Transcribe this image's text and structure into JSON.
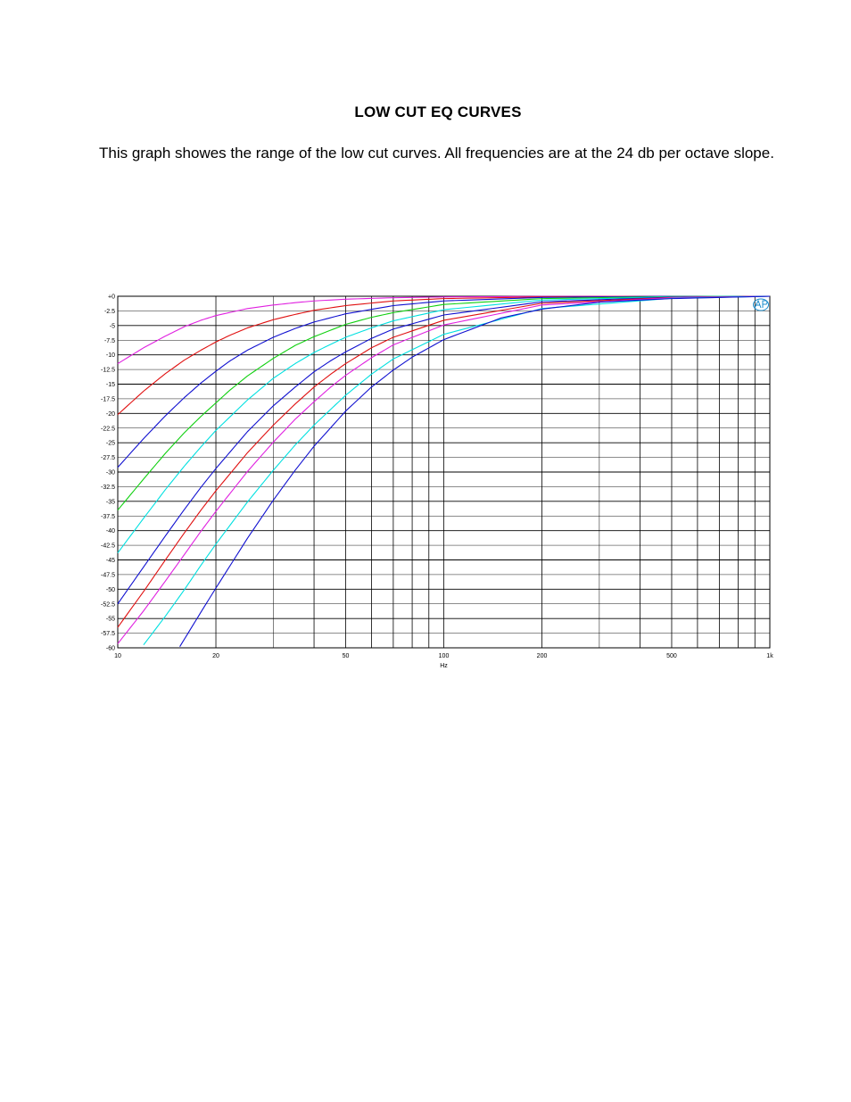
{
  "document": {
    "title": "LOW CUT EQ CURVES",
    "description": "This graph showes the range of the low cut curves.  All frequencies are at the 24 db per octave slope."
  },
  "chart_data": {
    "type": "line",
    "title": "",
    "xlabel": "Hz",
    "ylabel": "",
    "x_scale": "log",
    "xlim": [
      10,
      1000
    ],
    "ylim": [
      -60,
      0
    ],
    "grid": true,
    "legend": "none",
    "x_tick_labels": [
      {
        "value": 10,
        "label": "10"
      },
      {
        "value": 20,
        "label": "20"
      },
      {
        "value": 50,
        "label": "50"
      },
      {
        "value": 100,
        "label": "100"
      },
      {
        "value": 200,
        "label": "200"
      },
      {
        "value": 500,
        "label": "500"
      },
      {
        "value": 1000,
        "label": "1k"
      }
    ],
    "y_tick_labels": [
      "+0",
      "-2.5",
      "-5",
      "-7.5",
      "-10",
      "-12.5",
      "-15",
      "-17.5",
      "-20",
      "-22.5",
      "-25",
      "-27.5",
      "-30",
      "-32.5",
      "-35",
      "-37.5",
      "-40",
      "-42.5",
      "-45",
      "-47.5",
      "-50",
      "-52.5",
      "-55",
      "-57.5",
      "-60"
    ],
    "series": [
      {
        "color": "#e020e0",
        "x": [
          10,
          12,
          14,
          16,
          18,
          20,
          25,
          30,
          35,
          40,
          50,
          70,
          100,
          200,
          500,
          1000
        ],
        "y": [
          -11.5,
          -8.8,
          -6.8,
          -5.2,
          -4.1,
          -3.3,
          -2.1,
          -1.5,
          -1.1,
          -0.8,
          -0.5,
          -0.25,
          -0.12,
          -0.03,
          0,
          0
        ]
      },
      {
        "color": "#e01010",
        "x": [
          10,
          12,
          14,
          16,
          18,
          20,
          22,
          25,
          30,
          35,
          40,
          50,
          70,
          100,
          200,
          500,
          1000
        ],
        "y": [
          -20.2,
          -16.2,
          -13.2,
          -10.9,
          -9.2,
          -7.8,
          -6.7,
          -5.4,
          -4,
          -3.1,
          -2.4,
          -1.6,
          -0.8,
          -0.4,
          -0.1,
          0,
          0
        ]
      },
      {
        "color": "#1010d0",
        "x": [
          10,
          12,
          14,
          16,
          18,
          20,
          22,
          25,
          30,
          35,
          40,
          50,
          70,
          100,
          200,
          500,
          1000
        ],
        "y": [
          -29.2,
          -24.3,
          -20.4,
          -17.3,
          -14.8,
          -12.8,
          -11.1,
          -9.2,
          -7,
          -5.5,
          -4.4,
          -3,
          -1.6,
          -0.8,
          -0.2,
          0,
          0
        ]
      },
      {
        "color": "#10d010",
        "x": [
          10,
          12,
          14,
          16,
          18,
          20,
          22,
          25,
          30,
          35,
          40,
          50,
          60,
          70,
          100,
          200,
          500,
          1000
        ],
        "y": [
          -36.5,
          -31.2,
          -26.8,
          -23.3,
          -20.5,
          -18.2,
          -16.1,
          -13.6,
          -10.6,
          -8.4,
          -6.9,
          -4.8,
          -3.6,
          -2.8,
          -1.4,
          -0.4,
          -0.05,
          0
        ]
      },
      {
        "color": "#00e0e0",
        "x": [
          10,
          12,
          14,
          16,
          18,
          20,
          25,
          30,
          35,
          40,
          45,
          50,
          60,
          70,
          100,
          200,
          500,
          1000
        ],
        "y": [
          -43.8,
          -37.9,
          -33,
          -29,
          -25.7,
          -22.9,
          -17.7,
          -14,
          -11.5,
          -9.6,
          -8.2,
          -7,
          -5.4,
          -4.2,
          -2.3,
          -0.65,
          -0.1,
          0
        ]
      },
      {
        "color": "#1010d0",
        "x": [
          10,
          12,
          14,
          16,
          18,
          20,
          25,
          30,
          35,
          40,
          45,
          50,
          60,
          70,
          100,
          200,
          500,
          1000
        ],
        "y": [
          -52.5,
          -46.2,
          -40.9,
          -36.4,
          -32.6,
          -29.4,
          -23.1,
          -18.7,
          -15.5,
          -12.9,
          -11,
          -9.5,
          -7.2,
          -5.6,
          -3.2,
          -0.95,
          -0.15,
          0
        ]
      },
      {
        "color": "#e01010",
        "x": [
          10,
          12,
          14,
          16,
          18,
          20,
          25,
          30,
          35,
          40,
          45,
          50,
          60,
          70,
          100,
          200,
          500,
          1000
        ],
        "y": [
          -56.5,
          -50.4,
          -45,
          -40.4,
          -36.5,
          -33.2,
          -26.7,
          -22,
          -18.4,
          -15.5,
          -13.3,
          -11.5,
          -8.8,
          -7,
          -4.1,
          -1.2,
          -0.2,
          0
        ]
      },
      {
        "color": "#e020e0",
        "x": [
          10,
          12,
          14,
          16,
          18,
          20,
          25,
          30,
          35,
          40,
          45,
          50,
          60,
          70,
          100,
          200,
          500,
          1000
        ],
        "y": [
          -59.3,
          -53.7,
          -48.6,
          -44.1,
          -40.1,
          -36.7,
          -29.9,
          -24.9,
          -21,
          -18,
          -15.5,
          -13.5,
          -10.5,
          -8.3,
          -4.9,
          -1.5,
          -0.25,
          0
        ]
      },
      {
        "color": "#00e0e0",
        "x": [
          12,
          14,
          16,
          18,
          20,
          25,
          30,
          35,
          40,
          45,
          50,
          60,
          70,
          100,
          200,
          500,
          1000
        ],
        "y": [
          -59.5,
          -54.6,
          -50.1,
          -45.9,
          -42.3,
          -35.1,
          -29.7,
          -25.4,
          -22,
          -19.3,
          -16.9,
          -13.3,
          -10.7,
          -6.5,
          -2.1,
          -0.35,
          0
        ]
      },
      {
        "color": "#1010d0",
        "x": [
          15.5,
          18,
          20,
          25,
          30,
          35,
          40,
          50,
          60,
          70,
          80,
          100,
          150,
          200,
          300,
          500,
          1000
        ],
        "y": [
          -59.8,
          -53.9,
          -49.8,
          -41.3,
          -34.8,
          -29.7,
          -25.6,
          -19.6,
          -15.5,
          -12.6,
          -10.4,
          -7.4,
          -3.7,
          -2.2,
          -1,
          -0.4,
          0
        ]
      }
    ]
  }
}
